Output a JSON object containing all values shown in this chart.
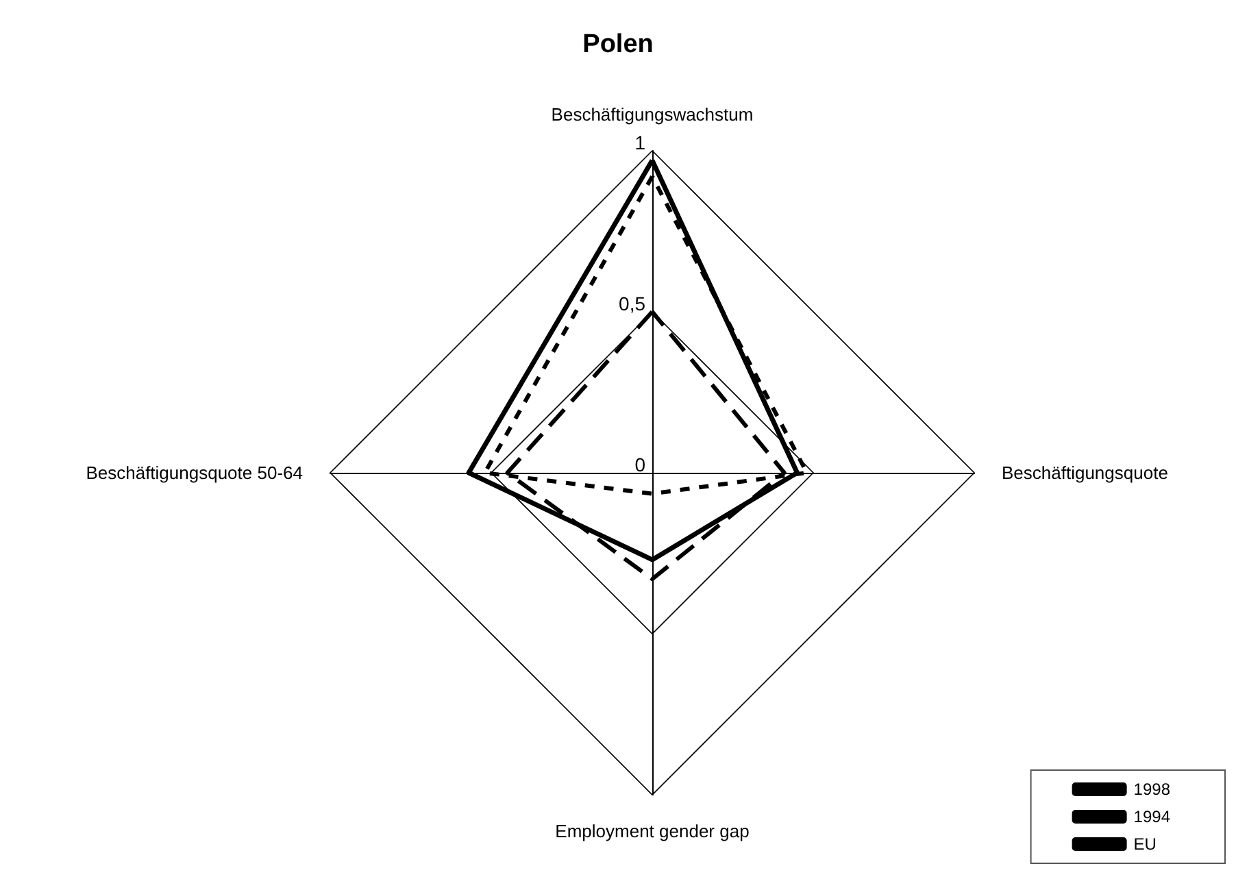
{
  "chart_data": {
    "type": "radar",
    "title": "Polen",
    "categories": [
      "Beschäftigungswachstum",
      "Beschäftigungsquote",
      "Employment gender gap",
      "Beschäftigungsquote 50-64"
    ],
    "series": [
      {
        "name": "1998",
        "color": "#000000",
        "line_style": "solid",
        "values": [
          0.97,
          0.45,
          0.27,
          0.57
        ]
      },
      {
        "name": "1994",
        "color": "#000000",
        "line_style": "dashed",
        "values": [
          0.5,
          0.41,
          0.33,
          0.45
        ]
      },
      {
        "name": "EU",
        "color": "#000000",
        "line_style": "dotted",
        "values": [
          0.92,
          0.48,
          0.065,
          0.52
        ]
      }
    ],
    "ylim": [
      0,
      1
    ],
    "yticks": [
      0,
      {
        "value": 0.5,
        "label": "0,5"
      },
      1
    ],
    "grid": true,
    "marker": "none",
    "legend": "bottom right"
  }
}
